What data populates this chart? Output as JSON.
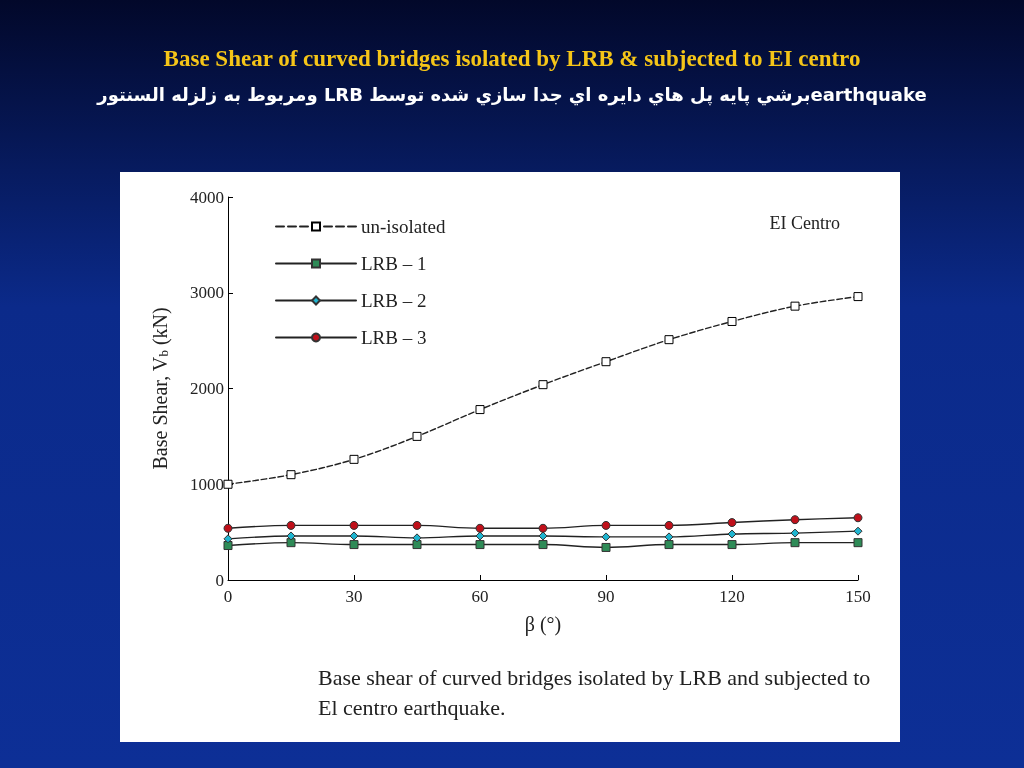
{
  "chart_data": {
    "type": "line",
    "title": "Base Shear of curved bridges isolated by LRB & subjected to EI centro",
    "subtitle": "earthquakeبرشي پايه پل هاي دايره اي جدا سازي شده توسط LRB  ومربوط به زلزله السنتور",
    "xlabel": "β (°)",
    "ylabel": "Base Shear, V$_{b}$ (kN)",
    "x": [
      0,
      15,
      30,
      45,
      60,
      75,
      90,
      105,
      120,
      135,
      150
    ],
    "series": [
      {
        "name": "un-isolated",
        "color": "#000000",
        "marker": "square",
        "line_style": "dashed",
        "values": [
          1000,
          1100,
          1260,
          1500,
          1780,
          2040,
          2280,
          2510,
          2700,
          2860,
          2960
        ]
      },
      {
        "name": "LRB – 1",
        "color": "#2e8b57",
        "marker": "square",
        "line_style": "solid",
        "values": [
          360,
          390,
          370,
          370,
          370,
          370,
          340,
          370,
          370,
          390,
          390
        ]
      },
      {
        "name": "LRB – 2",
        "color": "#1fb5d0",
        "marker": "diamond",
        "line_style": "solid",
        "values": [
          430,
          460,
          460,
          440,
          460,
          460,
          450,
          450,
          480,
          490,
          510
        ]
      },
      {
        "name": "LRB – 3",
        "color": "#c0101a",
        "marker": "circle",
        "line_style": "solid",
        "values": [
          540,
          570,
          570,
          570,
          540,
          540,
          570,
          570,
          600,
          630,
          650
        ]
      }
    ],
    "xlim": [
      0,
      150
    ],
    "xticks": [
      0,
      30,
      60,
      90,
      120,
      150
    ],
    "ylim": [
      0,
      4000
    ],
    "yticks": [
      0,
      1000,
      2000,
      3000,
      4000
    ],
    "grid": false,
    "legend": "top left",
    "annotations": [
      "EI Centro",
      "Base shear of curved bridges isolated by LRB and subjected to El centro earthquake."
    ]
  }
}
